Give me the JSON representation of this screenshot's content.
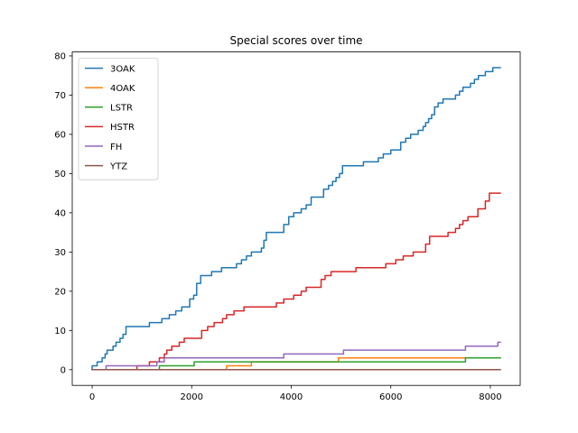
{
  "chart_data": {
    "type": "line",
    "title": "Special scores over time",
    "xlabel": "",
    "ylabel": "",
    "xlim": [
      -400,
      8600
    ],
    "ylim": [
      -4,
      81
    ],
    "xticks": [
      0,
      2000,
      4000,
      6000,
      8000
    ],
    "yticks": [
      0,
      10,
      20,
      30,
      40,
      50,
      60,
      70,
      80
    ],
    "grid": false,
    "legend_position": "top-left",
    "step": true,
    "series": [
      {
        "name": "3OAK",
        "color": "#1f77b4",
        "points": [
          [
            0,
            0
          ],
          [
            0,
            1
          ],
          [
            100,
            1
          ],
          [
            100,
            2
          ],
          [
            200,
            2
          ],
          [
            200,
            3
          ],
          [
            260,
            3
          ],
          [
            260,
            4
          ],
          [
            300,
            4
          ],
          [
            300,
            5
          ],
          [
            420,
            5
          ],
          [
            420,
            6
          ],
          [
            480,
            6
          ],
          [
            480,
            7
          ],
          [
            560,
            7
          ],
          [
            560,
            8
          ],
          [
            620,
            8
          ],
          [
            620,
            9
          ],
          [
            680,
            9
          ],
          [
            680,
            11
          ],
          [
            1150,
            11
          ],
          [
            1150,
            12
          ],
          [
            1400,
            12
          ],
          [
            1400,
            13
          ],
          [
            1550,
            13
          ],
          [
            1550,
            14
          ],
          [
            1680,
            14
          ],
          [
            1680,
            15
          ],
          [
            1800,
            15
          ],
          [
            1800,
            16
          ],
          [
            1960,
            16
          ],
          [
            1960,
            18
          ],
          [
            2040,
            18
          ],
          [
            2040,
            19
          ],
          [
            2100,
            19
          ],
          [
            2100,
            22
          ],
          [
            2180,
            22
          ],
          [
            2180,
            24
          ],
          [
            2400,
            24
          ],
          [
            2400,
            25
          ],
          [
            2600,
            25
          ],
          [
            2600,
            26
          ],
          [
            2900,
            26
          ],
          [
            2900,
            27
          ],
          [
            3000,
            27
          ],
          [
            3000,
            28
          ],
          [
            3100,
            28
          ],
          [
            3100,
            29
          ],
          [
            3200,
            29
          ],
          [
            3200,
            30
          ],
          [
            3400,
            30
          ],
          [
            3400,
            31
          ],
          [
            3450,
            31
          ],
          [
            3450,
            33
          ],
          [
            3500,
            33
          ],
          [
            3500,
            35
          ],
          [
            3850,
            35
          ],
          [
            3850,
            37
          ],
          [
            3950,
            37
          ],
          [
            3950,
            39
          ],
          [
            4050,
            39
          ],
          [
            4050,
            40
          ],
          [
            4200,
            40
          ],
          [
            4200,
            41
          ],
          [
            4300,
            41
          ],
          [
            4300,
            42
          ],
          [
            4400,
            42
          ],
          [
            4400,
            44
          ],
          [
            4650,
            44
          ],
          [
            4650,
            46
          ],
          [
            4750,
            46
          ],
          [
            4750,
            47
          ],
          [
            4830,
            47
          ],
          [
            4830,
            48
          ],
          [
            4900,
            48
          ],
          [
            4900,
            49
          ],
          [
            4970,
            49
          ],
          [
            4970,
            50
          ],
          [
            5030,
            50
          ],
          [
            5030,
            52
          ],
          [
            5450,
            52
          ],
          [
            5450,
            53
          ],
          [
            5750,
            53
          ],
          [
            5750,
            54
          ],
          [
            5850,
            54
          ],
          [
            5850,
            55
          ],
          [
            6000,
            55
          ],
          [
            6000,
            56
          ],
          [
            6200,
            56
          ],
          [
            6200,
            58
          ],
          [
            6300,
            58
          ],
          [
            6300,
            59
          ],
          [
            6400,
            59
          ],
          [
            6400,
            60
          ],
          [
            6550,
            60
          ],
          [
            6550,
            61
          ],
          [
            6650,
            61
          ],
          [
            6650,
            62
          ],
          [
            6700,
            62
          ],
          [
            6700,
            63
          ],
          [
            6760,
            63
          ],
          [
            6760,
            64
          ],
          [
            6820,
            64
          ],
          [
            6820,
            65
          ],
          [
            6880,
            65
          ],
          [
            6880,
            67
          ],
          [
            6950,
            67
          ],
          [
            6950,
            68
          ],
          [
            7050,
            68
          ],
          [
            7050,
            69
          ],
          [
            7300,
            69
          ],
          [
            7300,
            70
          ],
          [
            7380,
            70
          ],
          [
            7380,
            71
          ],
          [
            7450,
            71
          ],
          [
            7450,
            72
          ],
          [
            7600,
            72
          ],
          [
            7600,
            73
          ],
          [
            7680,
            73
          ],
          [
            7680,
            74
          ],
          [
            7760,
            74
          ],
          [
            7760,
            75
          ],
          [
            7900,
            75
          ],
          [
            7900,
            76
          ],
          [
            8050,
            76
          ],
          [
            8050,
            77
          ],
          [
            8200,
            77
          ]
        ]
      },
      {
        "name": "4OAK",
        "color": "#ff7f0e",
        "points": [
          [
            0,
            0
          ],
          [
            2700,
            0
          ],
          [
            2700,
            1
          ],
          [
            3200,
            1
          ],
          [
            3200,
            2
          ],
          [
            4950,
            2
          ],
          [
            4950,
            3
          ],
          [
            8200,
            3
          ]
        ]
      },
      {
        "name": "LSTR",
        "color": "#2ca02c",
        "points": [
          [
            0,
            0
          ],
          [
            1350,
            0
          ],
          [
            1350,
            1
          ],
          [
            2050,
            1
          ],
          [
            2050,
            2
          ],
          [
            7500,
            2
          ],
          [
            7500,
            3
          ],
          [
            8200,
            3
          ]
        ]
      },
      {
        "name": "HSTR",
        "color": "#d62728",
        "points": [
          [
            0,
            0
          ],
          [
            900,
            0
          ],
          [
            900,
            1
          ],
          [
            1150,
            1
          ],
          [
            1150,
            2
          ],
          [
            1350,
            2
          ],
          [
            1350,
            3
          ],
          [
            1450,
            3
          ],
          [
            1450,
            4
          ],
          [
            1500,
            4
          ],
          [
            1500,
            5
          ],
          [
            1600,
            5
          ],
          [
            1600,
            6
          ],
          [
            1750,
            6
          ],
          [
            1750,
            7
          ],
          [
            1850,
            7
          ],
          [
            1850,
            8
          ],
          [
            2200,
            8
          ],
          [
            2200,
            10
          ],
          [
            2320,
            10
          ],
          [
            2320,
            11
          ],
          [
            2450,
            11
          ],
          [
            2450,
            12
          ],
          [
            2620,
            12
          ],
          [
            2620,
            13
          ],
          [
            2700,
            13
          ],
          [
            2700,
            14
          ],
          [
            2850,
            14
          ],
          [
            2850,
            15
          ],
          [
            3050,
            15
          ],
          [
            3050,
            16
          ],
          [
            3700,
            16
          ],
          [
            3700,
            17
          ],
          [
            3850,
            17
          ],
          [
            3850,
            18
          ],
          [
            4050,
            18
          ],
          [
            4050,
            19
          ],
          [
            4200,
            19
          ],
          [
            4200,
            20
          ],
          [
            4300,
            20
          ],
          [
            4300,
            21
          ],
          [
            4600,
            21
          ],
          [
            4600,
            23
          ],
          [
            4680,
            23
          ],
          [
            4680,
            24
          ],
          [
            4800,
            24
          ],
          [
            4800,
            25
          ],
          [
            5300,
            25
          ],
          [
            5300,
            26
          ],
          [
            5900,
            26
          ],
          [
            5900,
            27
          ],
          [
            6100,
            27
          ],
          [
            6100,
            28
          ],
          [
            6250,
            28
          ],
          [
            6250,
            29
          ],
          [
            6450,
            29
          ],
          [
            6450,
            30
          ],
          [
            6700,
            30
          ],
          [
            6700,
            32
          ],
          [
            6780,
            32
          ],
          [
            6780,
            34
          ],
          [
            7150,
            34
          ],
          [
            7150,
            35
          ],
          [
            7300,
            35
          ],
          [
            7300,
            36
          ],
          [
            7380,
            36
          ],
          [
            7380,
            37
          ],
          [
            7450,
            37
          ],
          [
            7450,
            38
          ],
          [
            7550,
            38
          ],
          [
            7550,
            39
          ],
          [
            7750,
            39
          ],
          [
            7750,
            41
          ],
          [
            7900,
            41
          ],
          [
            7900,
            43
          ],
          [
            7980,
            43
          ],
          [
            7980,
            45
          ],
          [
            8200,
            45
          ]
        ]
      },
      {
        "name": "FH",
        "color": "#9467bd",
        "points": [
          [
            0,
            0
          ],
          [
            280,
            0
          ],
          [
            280,
            1
          ],
          [
            1300,
            1
          ],
          [
            1300,
            2
          ],
          [
            1450,
            2
          ],
          [
            1450,
            3
          ],
          [
            3850,
            3
          ],
          [
            3850,
            4
          ],
          [
            5050,
            4
          ],
          [
            5050,
            5
          ],
          [
            7500,
            5
          ],
          [
            7500,
            6
          ],
          [
            8150,
            6
          ],
          [
            8150,
            7
          ],
          [
            8200,
            7
          ]
        ]
      },
      {
        "name": "YTZ",
        "color": "#8c564b",
        "points": [
          [
            0,
            0
          ],
          [
            8200,
            0
          ]
        ]
      }
    ]
  }
}
